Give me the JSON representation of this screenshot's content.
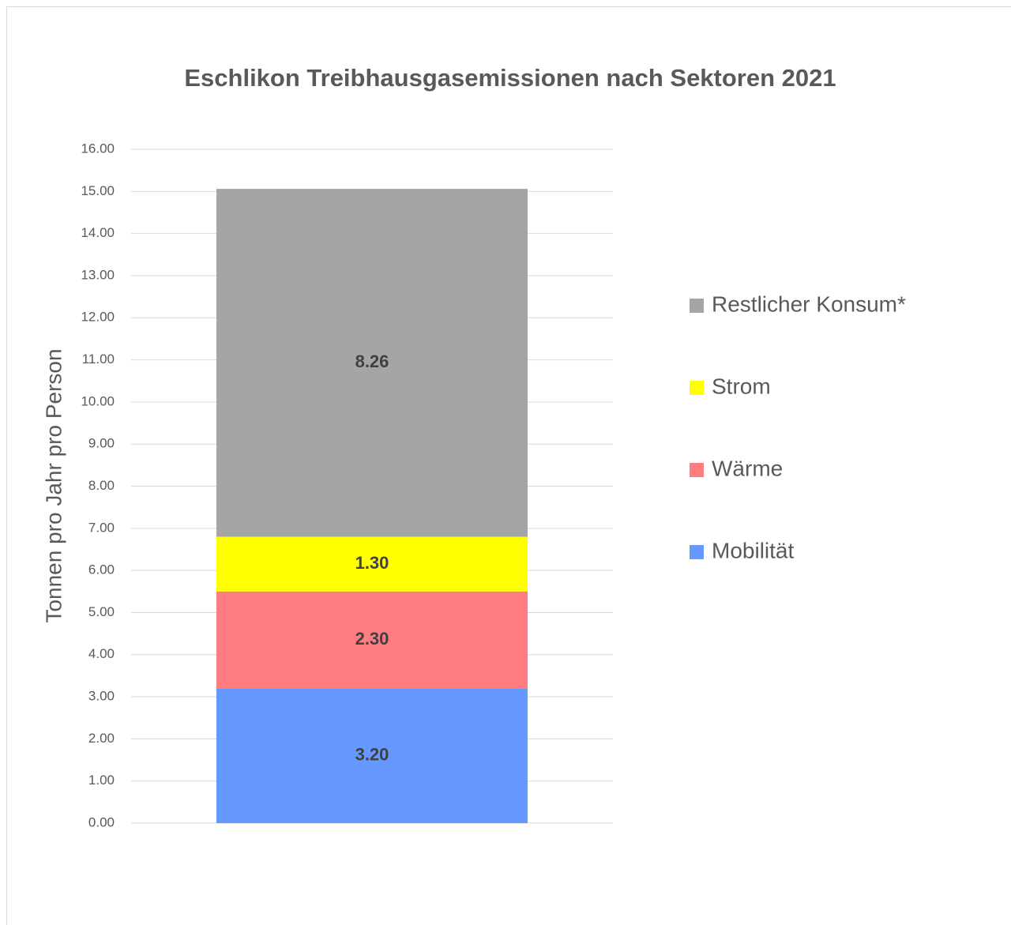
{
  "chart_data": {
    "type": "stacked_bar",
    "title": "Eschlikon Treibhausgasemissionen nach Sektoren 2021",
    "y_label": "Tonnen pro Jahr pro Person",
    "categories": [
      null
    ],
    "series": [
      {
        "name": "Mobilität",
        "color": "#6699ff",
        "values": [
          3.2
        ],
        "value_labels": [
          "3.20"
        ]
      },
      {
        "name": "Wärme",
        "color": "#ff7c80",
        "values": [
          2.3
        ],
        "value_labels": [
          "2.30"
        ]
      },
      {
        "name": "Strom",
        "color": "#ffff00",
        "values": [
          1.3
        ],
        "value_labels": [
          "1.30"
        ]
      },
      {
        "name": "Restlicher Konsum*",
        "color": "#a5a5a5",
        "values": [
          8.26
        ],
        "value_labels": [
          "8.26"
        ]
      }
    ],
    "ylim": [
      0,
      16
    ],
    "yticks": [
      {
        "value": 0,
        "label": "0.00"
      },
      {
        "value": 1,
        "label": "1.00"
      },
      {
        "value": 2,
        "label": "2.00"
      },
      {
        "value": 3,
        "label": "3.00"
      },
      {
        "value": 4,
        "label": "4.00"
      },
      {
        "value": 5,
        "label": "5.00"
      },
      {
        "value": 6,
        "label": "6.00"
      },
      {
        "value": 7,
        "label": "7.00"
      },
      {
        "value": 8,
        "label": "8.00"
      },
      {
        "value": 9,
        "label": "9.00"
      },
      {
        "value": 10,
        "label": "10.00"
      },
      {
        "value": 11,
        "label": "11.00"
      },
      {
        "value": 12,
        "label": "12.00"
      },
      {
        "value": 13,
        "label": "13.00"
      },
      {
        "value": 14,
        "label": "14.00"
      },
      {
        "value": 15,
        "label": "15.00"
      },
      {
        "value": 16,
        "label": "16.00"
      }
    ],
    "grid": true,
    "legend": "right"
  }
}
